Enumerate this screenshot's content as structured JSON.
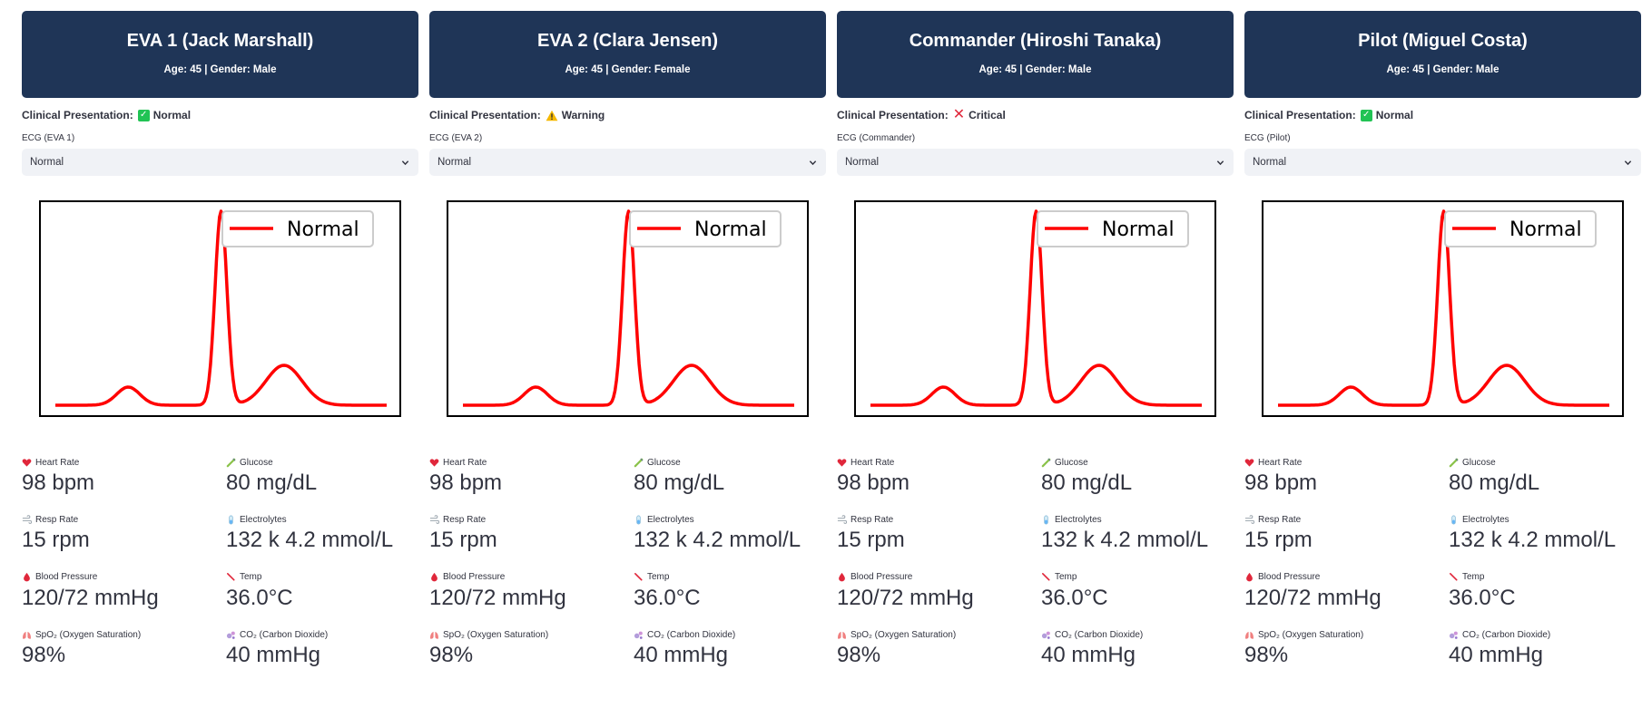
{
  "accent": "#1f3557",
  "patients": [
    {
      "name": "EVA 1 (Jack Marshall)",
      "info": "Age: 45 | Gender: Male",
      "clinical_label": "Clinical Presentation:",
      "status": "Normal",
      "status_icon": "check-icon",
      "ecg_label": "ECG (EVA 1)",
      "ecg_value": "Normal",
      "chart_legend": "Normal",
      "metrics": {
        "heart_rate": {
          "label": "Heart Rate",
          "value": "98 bpm"
        },
        "glucose": {
          "label": "Glucose",
          "value": "80 mg/dL"
        },
        "resp_rate": {
          "label": "Resp Rate",
          "value": "15 rpm"
        },
        "electrolytes": {
          "label": "Electrolytes",
          "value": "132 k 4.2 mmol/L"
        },
        "blood_pressure": {
          "label": "Blood Pressure",
          "value": "120/72 mmHg"
        },
        "temp": {
          "label": "Temp",
          "value": "36.0°C"
        },
        "spo2": {
          "label": "SpO₂ (Oxygen Saturation)",
          "value": "98%"
        },
        "co2": {
          "label": "CO₂ (Carbon Dioxide)",
          "value": "40 mmHg"
        }
      }
    },
    {
      "name": "EVA 2 (Clara Jensen)",
      "info": "Age: 45 | Gender: Female",
      "clinical_label": "Clinical Presentation:",
      "status": "Warning",
      "status_icon": "warning-icon",
      "ecg_label": "ECG (EVA 2)",
      "ecg_value": "Normal",
      "chart_legend": "Normal",
      "metrics": {
        "heart_rate": {
          "label": "Heart Rate",
          "value": "98 bpm"
        },
        "glucose": {
          "label": "Glucose",
          "value": "80 mg/dL"
        },
        "resp_rate": {
          "label": "Resp Rate",
          "value": "15 rpm"
        },
        "electrolytes": {
          "label": "Electrolytes",
          "value": "132 k 4.2 mmol/L"
        },
        "blood_pressure": {
          "label": "Blood Pressure",
          "value": "120/72 mmHg"
        },
        "temp": {
          "label": "Temp",
          "value": "36.0°C"
        },
        "spo2": {
          "label": "SpO₂ (Oxygen Saturation)",
          "value": "98%"
        },
        "co2": {
          "label": "CO₂ (Carbon Dioxide)",
          "value": "40 mmHg"
        }
      }
    },
    {
      "name": "Commander (Hiroshi Tanaka)",
      "info": "Age: 45 | Gender: Male",
      "clinical_label": "Clinical Presentation:",
      "status": "Critical",
      "status_icon": "cross-icon",
      "ecg_label": "ECG (Commander)",
      "ecg_value": "Normal",
      "chart_legend": "Normal",
      "metrics": {
        "heart_rate": {
          "label": "Heart Rate",
          "value": "98 bpm"
        },
        "glucose": {
          "label": "Glucose",
          "value": "80 mg/dL"
        },
        "resp_rate": {
          "label": "Resp Rate",
          "value": "15 rpm"
        },
        "electrolytes": {
          "label": "Electrolytes",
          "value": "132 k 4.2 mmol/L"
        },
        "blood_pressure": {
          "label": "Blood Pressure",
          "value": "120/72 mmHg"
        },
        "temp": {
          "label": "Temp",
          "value": "36.0°C"
        },
        "spo2": {
          "label": "SpO₂ (Oxygen Saturation)",
          "value": "98%"
        },
        "co2": {
          "label": "CO₂ (Carbon Dioxide)",
          "value": "40 mmHg"
        }
      }
    },
    {
      "name": "Pilot (Miguel Costa)",
      "info": "Age: 45 | Gender: Male",
      "clinical_label": "Clinical Presentation:",
      "status": "Normal",
      "status_icon": "check-icon",
      "ecg_label": "ECG (Pilot)",
      "ecg_value": "Normal",
      "chart_legend": "Normal",
      "metrics": {
        "heart_rate": {
          "label": "Heart Rate",
          "value": "98 bpm"
        },
        "glucose": {
          "label": "Glucose",
          "value": "80 mg/dL"
        },
        "resp_rate": {
          "label": "Resp Rate",
          "value": "15 rpm"
        },
        "electrolytes": {
          "label": "Electrolytes",
          "value": "132 k 4.2 mmol/L"
        },
        "blood_pressure": {
          "label": "Blood Pressure",
          "value": "120/72 mmHg"
        },
        "temp": {
          "label": "Temp",
          "value": "36.0°C"
        },
        "spo2": {
          "label": "SpO₂ (Oxygen Saturation)",
          "value": "98%"
        },
        "co2": {
          "label": "CO₂ (Carbon Dioxide)",
          "value": "40 mmHg"
        }
      }
    }
  ]
}
